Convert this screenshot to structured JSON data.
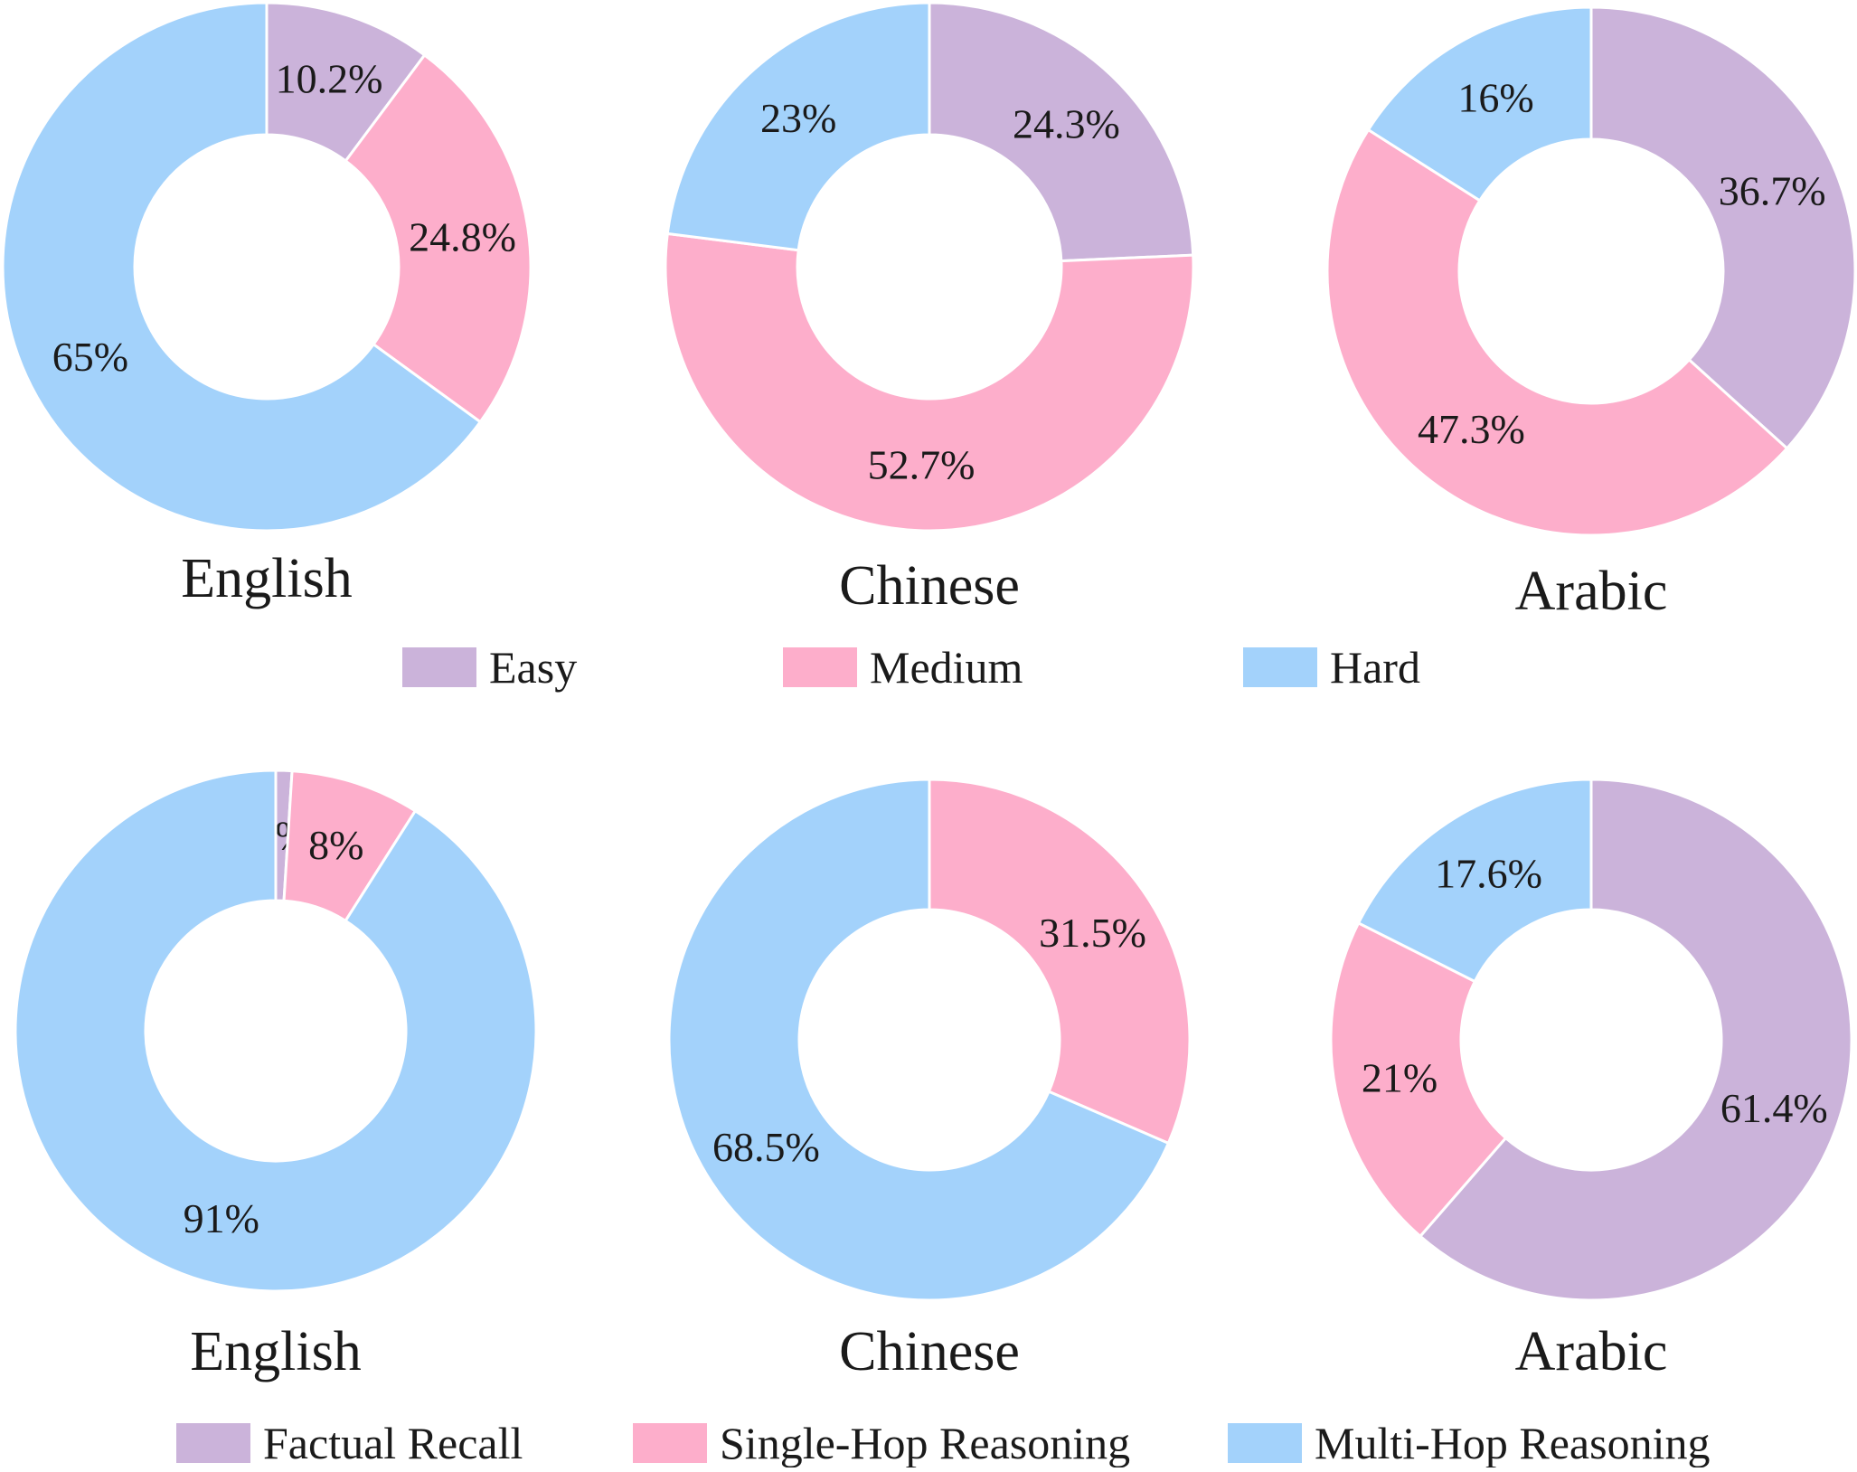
{
  "colors": {
    "purple": "#cbb3da",
    "pink": "#fdaecb",
    "blue": "#a3d2fb",
    "edge": "#ffffff"
  },
  "legends": [
    {
      "items": [
        {
          "label": "Easy",
          "color": "#cbb3da"
        },
        {
          "label": "Medium",
          "color": "#fdaecb"
        },
        {
          "label": "Hard",
          "color": "#a3d2fb"
        }
      ]
    },
    {
      "items": [
        {
          "label": "Factual Recall",
          "color": "#cbb3da"
        },
        {
          "label": "Single-Hop Reasoning",
          "color": "#fdaecb"
        },
        {
          "label": "Multi-Hop Reasoning",
          "color": "#a3d2fb"
        }
      ]
    }
  ],
  "chart_data": [
    {
      "type": "pie",
      "title": "English",
      "categories": [
        "Easy",
        "Medium",
        "Hard"
      ],
      "values": [
        10.2,
        24.8,
        65
      ],
      "labels": [
        "10.2%",
        "24.8%",
        "65%"
      ]
    },
    {
      "type": "pie",
      "title": "Chinese",
      "categories": [
        "Easy",
        "Medium",
        "Hard"
      ],
      "values": [
        24.3,
        52.7,
        23
      ],
      "labels": [
        "24.3%",
        "52.7%",
        "23%"
      ]
    },
    {
      "type": "pie",
      "title": "Arabic",
      "categories": [
        "Easy",
        "Medium",
        "Hard"
      ],
      "values": [
        36.7,
        47.3,
        16
      ],
      "labels": [
        "36.7%",
        "47.3%",
        "16%"
      ]
    },
    {
      "type": "pie",
      "title": "English",
      "categories": [
        "Factual Recall",
        "Single-Hop Reasoning",
        "Multi-Hop Reasoning"
      ],
      "values": [
        1,
        8,
        91
      ],
      "labels": [
        "1%",
        "8%",
        "91%"
      ]
    },
    {
      "type": "pie",
      "title": "Chinese",
      "categories": [
        "Factual Recall",
        "Single-Hop Reasoning",
        "Multi-Hop Reasoning"
      ],
      "values": [
        0,
        31.5,
        68.5
      ],
      "labels": [
        "",
        "31.5%",
        "68.5%"
      ]
    },
    {
      "type": "pie",
      "title": "Arabic",
      "categories": [
        "Factual Recall",
        "Single-Hop Reasoning",
        "Multi-Hop Reasoning"
      ],
      "values": [
        61.4,
        21,
        17.6
      ],
      "labels": [
        "61.4%",
        "21%",
        "17.6%"
      ]
    }
  ]
}
